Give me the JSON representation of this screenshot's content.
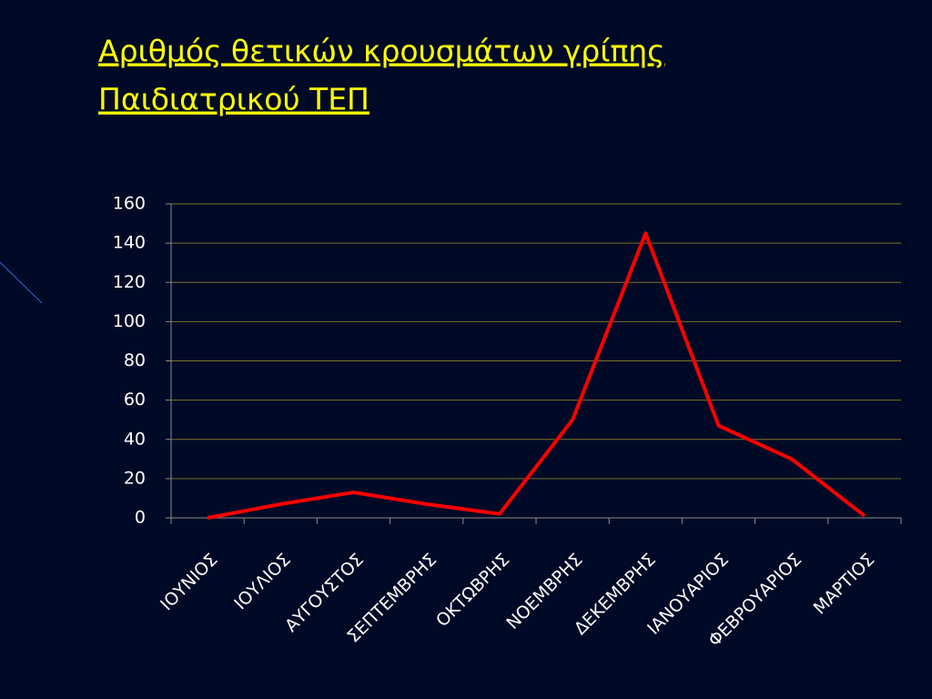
{
  "chart_data": {
    "type": "line",
    "title": [
      "Αριθμός θετικών κρουσμάτων γρίπης",
      "Παιδιατρικού ΤΕΠ"
    ],
    "categories": [
      "ΙΟΥΝΙΟΣ",
      "ΙΟΥΛΙΟΣ",
      "ΑΥΓΟΥΣΤΟΣ",
      "ΣΕΠΤΕΜΒΡΗΣ",
      "ΟΚΤΩΒΡΗΣ",
      "ΝΟΕΜΒΡΗΣ",
      "ΔΕΚΕΜΒΡΗΣ",
      "ΙΑΝΟΥΑΡΙΟΣ",
      "ΦΕΒΡΟΥΑΡΙΟΣ",
      "ΜΑΡΤΙΟΣ"
    ],
    "values": [
      0,
      7,
      13,
      7,
      2,
      50,
      145,
      47,
      30,
      1
    ],
    "color": "#ff0000",
    "ylim": [
      0,
      160
    ],
    "yticks": [
      0,
      20,
      40,
      60,
      80,
      100,
      120,
      140,
      160
    ],
    "grid": true
  }
}
